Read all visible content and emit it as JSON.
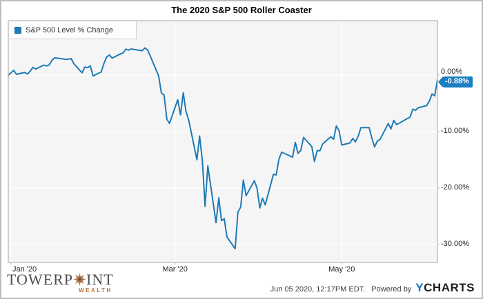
{
  "header": {
    "title": "The 2020 S&P 500 Roller Coaster"
  },
  "legend": {
    "label": "S&P 500 Level % Change"
  },
  "colors": {
    "line": "#1f7ab4",
    "badge": "#1b7ec2",
    "plot_bg": "#f5f5f6",
    "gridline": "#ffffff",
    "plot_border": "#b5b5b5",
    "brand_text": "#4d4e53",
    "brand_accent": "#c0703a",
    "ycharts_blue": "#1b75bb"
  },
  "footer": {
    "timestamp": "Jun 05 2020, 12:17PM EDT.",
    "powered_by": "Powered by",
    "ycharts_y": "Y",
    "ycharts_rest": "CHARTS"
  },
  "branding": {
    "towerpoint": {
      "part1": "TOWERP",
      "icon": "compass-rose-icon",
      "part2": "INT",
      "subtitle": "WEALTH"
    }
  },
  "chart_data": {
    "type": "line",
    "title": "The 2020 S&P 500 Roller Coaster",
    "legend": [
      "S&P 500 Level % Change"
    ],
    "legend_position": "top-left",
    "grid": true,
    "x_domain": [
      "2019-12-31",
      "2020-06-05"
    ],
    "ylim": [
      -33,
      9.5
    ],
    "ylabel": "",
    "xlabel": "",
    "y_ticks": [
      {
        "label": "0.00%",
        "value": 0
      },
      {
        "label": "-10.00%",
        "value": -10
      },
      {
        "label": "-20.00%",
        "value": -20
      },
      {
        "label": "-30.00%",
        "value": -30
      }
    ],
    "x_ticks": [
      {
        "label": "Jan '20",
        "date": "2020-01-01",
        "align": "left"
      },
      {
        "label": "Mar '20",
        "date": "2020-03-01",
        "align": "center"
      },
      {
        "label": "May '20",
        "date": "2020-05-01",
        "align": "center"
      }
    ],
    "last_value": -0.88,
    "last_value_label": "-0.88%",
    "series": [
      {
        "name": "S&P 500 Level % Change",
        "color": "#1f7ab4",
        "dates": [
          "2019-12-31",
          "2020-01-02",
          "2020-01-03",
          "2020-01-06",
          "2020-01-07",
          "2020-01-08",
          "2020-01-09",
          "2020-01-10",
          "2020-01-13",
          "2020-01-14",
          "2020-01-15",
          "2020-01-16",
          "2020-01-17",
          "2020-01-21",
          "2020-01-22",
          "2020-01-23",
          "2020-01-24",
          "2020-01-27",
          "2020-01-28",
          "2020-01-29",
          "2020-01-30",
          "2020-01-31",
          "2020-02-03",
          "2020-02-04",
          "2020-02-05",
          "2020-02-06",
          "2020-02-07",
          "2020-02-10",
          "2020-02-11",
          "2020-02-12",
          "2020-02-13",
          "2020-02-14",
          "2020-02-18",
          "2020-02-19",
          "2020-02-20",
          "2020-02-21",
          "2020-02-24",
          "2020-02-25",
          "2020-02-26",
          "2020-02-27",
          "2020-02-28",
          "2020-03-02",
          "2020-03-03",
          "2020-03-04",
          "2020-03-05",
          "2020-03-06",
          "2020-03-09",
          "2020-03-10",
          "2020-03-11",
          "2020-03-12",
          "2020-03-13",
          "2020-03-16",
          "2020-03-17",
          "2020-03-18",
          "2020-03-19",
          "2020-03-20",
          "2020-03-23",
          "2020-03-24",
          "2020-03-25",
          "2020-03-26",
          "2020-03-27",
          "2020-03-30",
          "2020-03-31",
          "2020-04-01",
          "2020-04-02",
          "2020-04-03",
          "2020-04-06",
          "2020-04-07",
          "2020-04-08",
          "2020-04-09",
          "2020-04-13",
          "2020-04-14",
          "2020-04-15",
          "2020-04-16",
          "2020-04-17",
          "2020-04-20",
          "2020-04-21",
          "2020-04-22",
          "2020-04-23",
          "2020-04-24",
          "2020-04-27",
          "2020-04-28",
          "2020-04-29",
          "2020-04-30",
          "2020-05-01",
          "2020-05-04",
          "2020-05-05",
          "2020-05-06",
          "2020-05-07",
          "2020-05-08",
          "2020-05-11",
          "2020-05-12",
          "2020-05-13",
          "2020-05-14",
          "2020-05-15",
          "2020-05-18",
          "2020-05-19",
          "2020-05-20",
          "2020-05-21",
          "2020-05-22",
          "2020-05-26",
          "2020-05-27",
          "2020-05-28",
          "2020-05-29",
          "2020-06-01",
          "2020-06-02",
          "2020-06-03",
          "2020-06-04",
          "2020-06-05"
        ],
        "values": [
          0.0,
          0.84,
          0.13,
          0.48,
          0.2,
          0.69,
          1.36,
          1.07,
          1.77,
          1.62,
          1.81,
          2.66,
          3.06,
          2.79,
          2.82,
          2.93,
          2.0,
          0.4,
          1.41,
          1.32,
          1.64,
          -0.16,
          0.56,
          2.07,
          3.22,
          3.56,
          3.0,
          3.75,
          3.93,
          4.6,
          4.43,
          4.62,
          4.32,
          4.81,
          4.41,
          3.31,
          -0.15,
          -3.17,
          -3.54,
          -7.8,
          -8.56,
          -4.35,
          -7.04,
          -3.12,
          -6.4,
          -8.0,
          -14.99,
          -10.79,
          -15.15,
          -23.22,
          -16.09,
          -26.14,
          -21.72,
          -25.77,
          -25.42,
          -28.66,
          -30.75,
          -24.25,
          -23.38,
          -18.59,
          -21.34,
          -18.7,
          -20.0,
          -23.53,
          -21.79,
          -22.97,
          -17.55,
          -17.68,
          -14.88,
          -13.65,
          -14.52,
          -11.91,
          -13.85,
          -13.35,
          -11.03,
          -12.62,
          -15.3,
          -13.35,
          -13.4,
          -12.2,
          -10.9,
          -11.37,
          -9.01,
          -9.85,
          -12.38,
          -12.01,
          -11.21,
          -11.83,
          -10.82,
          -9.31,
          -9.3,
          -11.16,
          -12.71,
          -11.71,
          -11.36,
          -8.57,
          -9.53,
          -8.02,
          -8.74,
          -8.52,
          -7.4,
          -6.02,
          -6.22,
          -5.77,
          -5.42,
          -4.64,
          -3.34,
          -3.67,
          -0.88
        ]
      }
    ]
  }
}
